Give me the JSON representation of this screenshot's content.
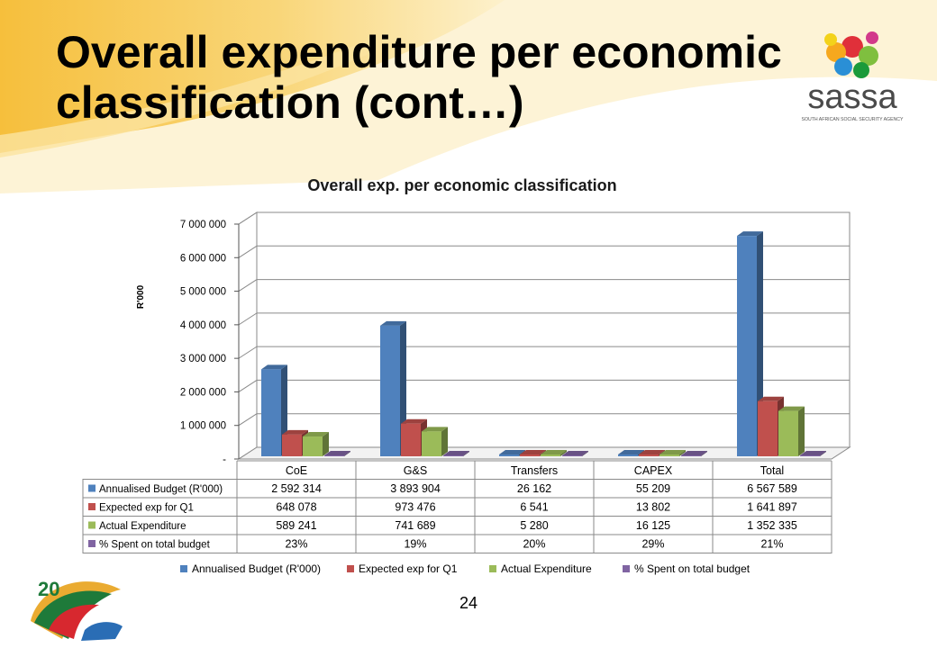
{
  "slide": {
    "title_line1": "Overall expenditure per economic",
    "title_line2": "classification (cont…)",
    "page_number": "24",
    "logo": {
      "name": "sassa",
      "tagline": "SOUTH AFRICAN SOCIAL SECURITY AGENCY"
    },
    "colors": {
      "header_yellow": "#f7c64a",
      "header_light": "#fbe4a0"
    }
  },
  "chart_data": {
    "type": "bar",
    "title": "Overall exp. per economic classification",
    "ylabel": "R'000",
    "xlabel": "",
    "ylim": [
      0,
      7000000
    ],
    "y_ticks": [
      "-",
      "1 000 000",
      "2 000 000",
      "3 000 000",
      "4 000 000",
      "5 000 000",
      "6 000 000",
      "7 000 000"
    ],
    "grid": true,
    "legend_position": "bottom",
    "categories": [
      "CoE",
      "G&S",
      "Transfers",
      "CAPEX",
      "Total"
    ],
    "series": [
      {
        "name": "Annualised Budget (R'000)",
        "color": "#4f81bd",
        "values": [
          2592314,
          3893904,
          26162,
          55209,
          6567589
        ],
        "labels": [
          "2 592 314",
          "3 893 904",
          "26 162",
          "55 209",
          "6 567 589"
        ]
      },
      {
        "name": "Expected exp for Q1",
        "color": "#c0504d",
        "values": [
          648078,
          973476,
          6541,
          13802,
          1641897
        ],
        "labels": [
          "648 078",
          "973 476",
          "6 541",
          "13 802",
          "1 641 897"
        ]
      },
      {
        "name": "Actual Expenditure",
        "color": "#9bbb59",
        "values": [
          589241,
          741689,
          5280,
          16125,
          1352335
        ],
        "labels": [
          "589 241",
          "741 689",
          "5 280",
          "16 125",
          "1 352 335"
        ]
      },
      {
        "name": "% Spent on total budget",
        "color": "#8064a2",
        "values": [
          23,
          19,
          20,
          29,
          21
        ],
        "labels": [
          "23%",
          "19%",
          "20%",
          "29%",
          "21%"
        ]
      }
    ]
  }
}
